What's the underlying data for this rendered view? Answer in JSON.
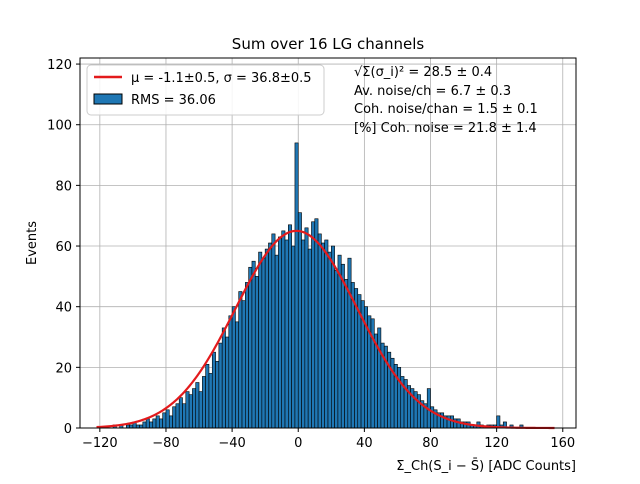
{
  "chart_data": {
    "type": "bar",
    "title": "Sum over 16 LG channels",
    "xlabel": "Σ_Ch(S_i − S̄) [ADC Counts]",
    "ylabel": "Events",
    "xlim": [
      -132,
      168
    ],
    "ylim": [
      0,
      122
    ],
    "xticks": [
      -120,
      -80,
      -40,
      0,
      40,
      80,
      120,
      160
    ],
    "yticks": [
      0,
      20,
      40,
      60,
      80,
      100,
      120
    ],
    "grid": true,
    "legend_position": "top-left",
    "colors": {
      "bar_fill": "#1f77b4",
      "bar_edge": "#000000",
      "fit_line": "#e31a1c",
      "grid": "#b0b0b0"
    },
    "legend": [
      {
        "kind": "line",
        "label": "μ = -1.1±0.5, σ = 36.8±0.5"
      },
      {
        "kind": "patch",
        "label": "RMS = 36.06"
      }
    ],
    "annotations": [
      "√Σ(σ_i)² = 28.5 ± 0.4",
      "Av. noise/ch = 6.7 ± 0.3",
      "Coh. noise/chan = 1.5 ± 0.1",
      "[%] Coh. noise = 21.8 ± 1.4"
    ],
    "histogram": {
      "bin_width": 2,
      "bin_centers": [
        -111,
        -109,
        -107,
        -105,
        -103,
        -101,
        -99,
        -97,
        -95,
        -93,
        -91,
        -89,
        -87,
        -85,
        -83,
        -81,
        -79,
        -77,
        -75,
        -73,
        -71,
        -69,
        -67,
        -65,
        -63,
        -61,
        -59,
        -57,
        -55,
        -53,
        -51,
        -49,
        -47,
        -45,
        -43,
        -41,
        -39,
        -37,
        -35,
        -33,
        -31,
        -29,
        -27,
        -25,
        -23,
        -21,
        -19,
        -17,
        -15,
        -13,
        -11,
        -9,
        -7,
        -5,
        -3,
        -1,
        1,
        3,
        5,
        7,
        9,
        11,
        13,
        15,
        17,
        19,
        21,
        23,
        25,
        27,
        29,
        31,
        33,
        35,
        37,
        39,
        41,
        43,
        45,
        47,
        49,
        51,
        53,
        55,
        57,
        59,
        61,
        63,
        65,
        67,
        69,
        71,
        73,
        75,
        77,
        79,
        81,
        83,
        85,
        87,
        89,
        91,
        93,
        95,
        97,
        99,
        101,
        103,
        105,
        107,
        109,
        111,
        113,
        115,
        117,
        119,
        121,
        123,
        125,
        127,
        129,
        131,
        133,
        135,
        137,
        139
      ],
      "counts": [
        1,
        0,
        1,
        0,
        1,
        1,
        2,
        1,
        1,
        2,
        3,
        2,
        3,
        4,
        3,
        5,
        6,
        4,
        7,
        8,
        10,
        8,
        12,
        11,
        13,
        15,
        12,
        17,
        21,
        18,
        25,
        22,
        28,
        33,
        30,
        37,
        40,
        35,
        45,
        42,
        48,
        53,
        55,
        50,
        58,
        56,
        59,
        61,
        64,
        57,
        63,
        65,
        62,
        67,
        60,
        94,
        71,
        62,
        66,
        59,
        68,
        69,
        64,
        61,
        62,
        58,
        60,
        52,
        57,
        54,
        49,
        56,
        48,
        46,
        44,
        42,
        40,
        37,
        36,
        31,
        33,
        28,
        27,
        25,
        23,
        21,
        20,
        17,
        16,
        14,
        13,
        12,
        11,
        9,
        8,
        13,
        7,
        6,
        5,
        5,
        4,
        4,
        4,
        3,
        3,
        2,
        2,
        2,
        1,
        1,
        2,
        1,
        0,
        1,
        1,
        1,
        4,
        1,
        2,
        0,
        1,
        0,
        0,
        1,
        0,
        0
      ]
    },
    "fit": {
      "type": "gaussian",
      "mu": -1.1,
      "sigma": 36.8,
      "amplitude": 65,
      "x_range": [
        -122,
        155
      ]
    }
  }
}
